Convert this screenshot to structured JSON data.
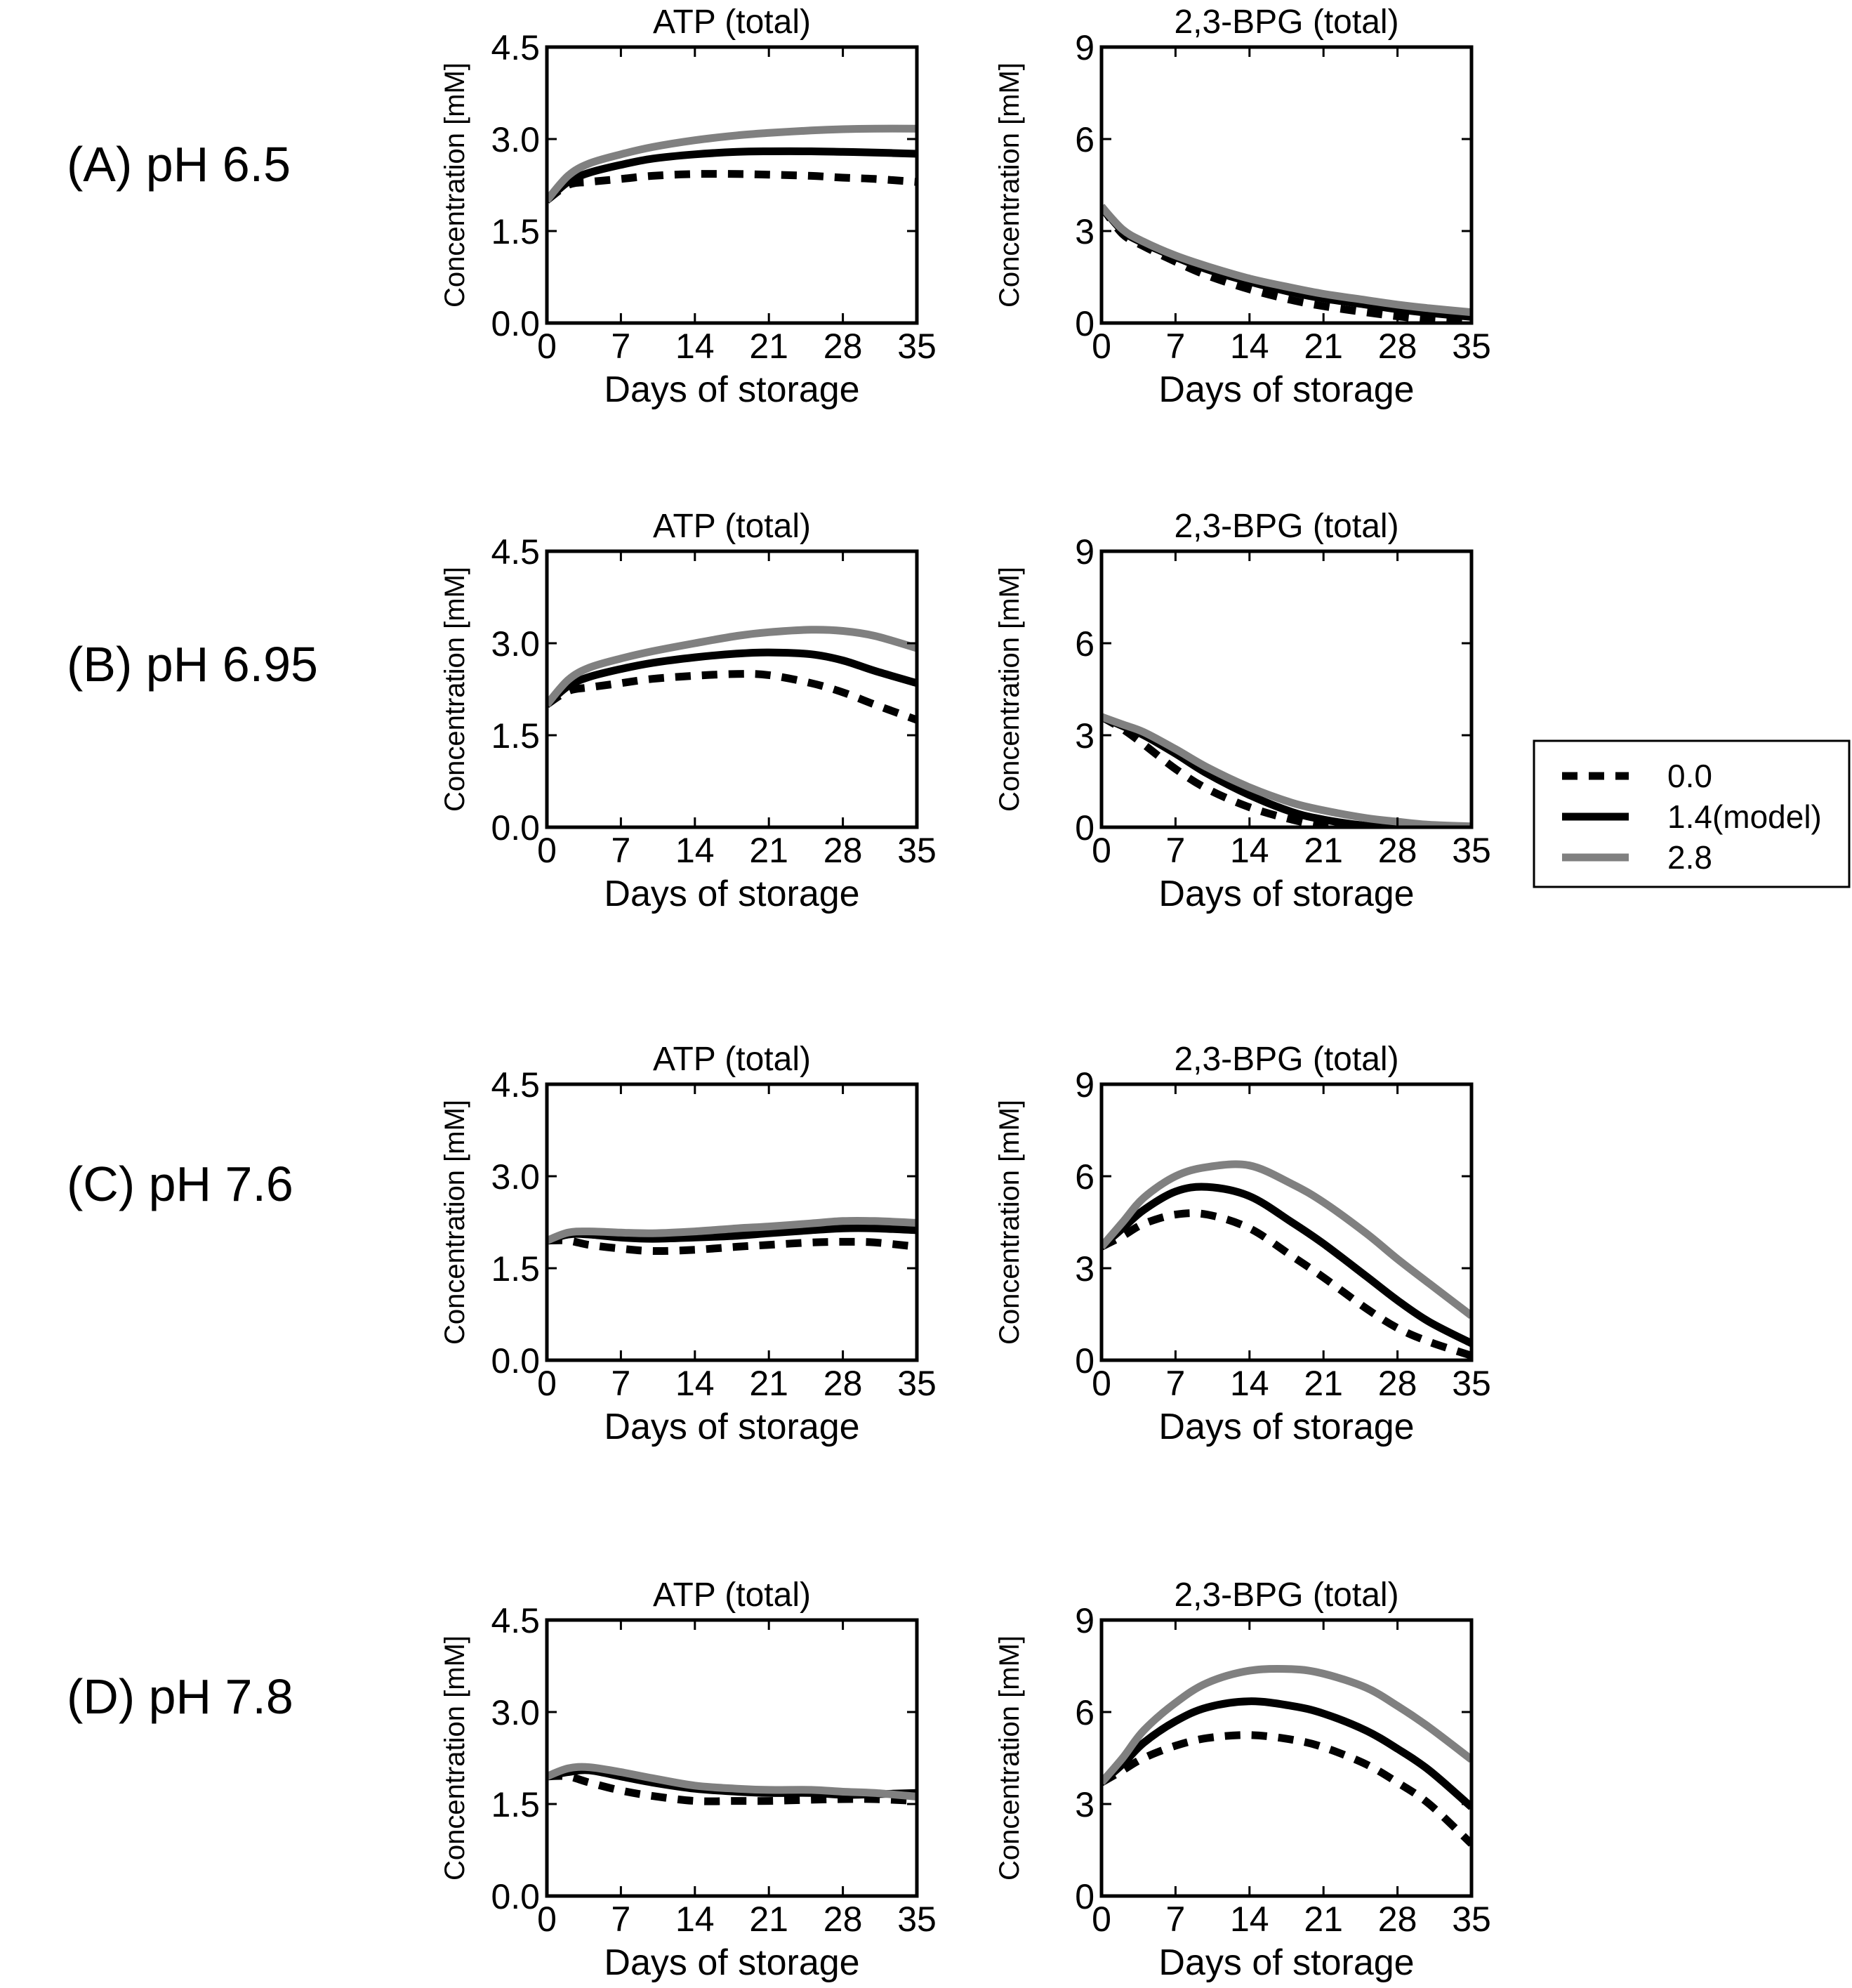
{
  "legend": {
    "placement": "right",
    "entries": [
      {
        "label": "0.0",
        "style": "dashed",
        "color": "#000000"
      },
      {
        "label": "1.4(model)",
        "style": "solid",
        "color": "#000000"
      },
      {
        "label": "2.8",
        "style": "solid",
        "color": "#808080"
      }
    ]
  },
  "rows": [
    {
      "label": "(A) pH 6.5"
    },
    {
      "label": "(B) pH 6.95"
    },
    {
      "label": "(C) pH 7.6"
    },
    {
      "label": "(D) pH 7.8"
    }
  ],
  "chart_data": [
    {
      "type": "line",
      "row": 0,
      "title": "ATP (total)",
      "xlabel": "Days of storage",
      "ylabel": "Concentration [mM]",
      "xlim": [
        0,
        35
      ],
      "ylim": [
        0,
        4.5
      ],
      "xticks": [
        "0",
        "7",
        "14",
        "21",
        "28",
        "35"
      ],
      "yticks": [
        "0.0",
        "1.5",
        "3.0",
        "4.5"
      ],
      "x": [
        0,
        2,
        4,
        7,
        10,
        14,
        18,
        21,
        25,
        28,
        31,
        35
      ],
      "series": [
        {
          "name": "0.0",
          "values": [
            2.0,
            2.25,
            2.3,
            2.35,
            2.4,
            2.43,
            2.43,
            2.42,
            2.4,
            2.37,
            2.35,
            2.3
          ]
        },
        {
          "name": "1.4(model)",
          "values": [
            2.0,
            2.3,
            2.45,
            2.58,
            2.68,
            2.75,
            2.79,
            2.8,
            2.8,
            2.79,
            2.78,
            2.76
          ]
        },
        {
          "name": "2.8",
          "values": [
            2.0,
            2.4,
            2.6,
            2.75,
            2.87,
            2.98,
            3.06,
            3.1,
            3.14,
            3.16,
            3.17,
            3.17
          ]
        }
      ]
    },
    {
      "type": "line",
      "row": 0,
      "title": "2,3-BPG (total)",
      "xlabel": "Days of storage",
      "ylabel": "Concentration [mM]",
      "xlim": [
        0,
        35
      ],
      "ylim": [
        0,
        9
      ],
      "xticks": [
        "0",
        "7",
        "14",
        "21",
        "28",
        "35"
      ],
      "yticks": [
        "0",
        "3",
        "6",
        "9"
      ],
      "x": [
        0,
        2,
        4,
        7,
        10,
        14,
        18,
        21,
        25,
        28,
        31,
        35
      ],
      "series": [
        {
          "name": "0.0",
          "values": [
            3.8,
            2.9,
            2.5,
            2.0,
            1.55,
            1.1,
            0.75,
            0.55,
            0.35,
            0.22,
            0.12,
            0.05
          ]
        },
        {
          "name": "1.4(model)",
          "values": [
            3.8,
            3.0,
            2.6,
            2.15,
            1.75,
            1.35,
            1.0,
            0.8,
            0.6,
            0.45,
            0.33,
            0.2
          ]
        },
        {
          "name": "2.8",
          "values": [
            3.8,
            3.05,
            2.65,
            2.2,
            1.85,
            1.45,
            1.15,
            0.95,
            0.75,
            0.6,
            0.48,
            0.35
          ]
        }
      ]
    },
    {
      "type": "line",
      "row": 1,
      "title": "ATP (total)",
      "xlabel": "Days of storage",
      "ylabel": "Concentration [mM]",
      "xlim": [
        0,
        35
      ],
      "ylim": [
        0,
        4.5
      ],
      "xticks": [
        "0",
        "7",
        "14",
        "21",
        "28",
        "35"
      ],
      "yticks": [
        "0.0",
        "1.5",
        "3.0",
        "4.5"
      ],
      "x": [
        0,
        2,
        4,
        7,
        10,
        14,
        18,
        21,
        25,
        28,
        31,
        35
      ],
      "series": [
        {
          "name": "0.0",
          "values": [
            2.0,
            2.22,
            2.28,
            2.35,
            2.42,
            2.47,
            2.5,
            2.48,
            2.35,
            2.2,
            2.0,
            1.75
          ]
        },
        {
          "name": "1.4(model)",
          "values": [
            2.0,
            2.3,
            2.45,
            2.58,
            2.68,
            2.77,
            2.83,
            2.85,
            2.82,
            2.72,
            2.55,
            2.35
          ]
        },
        {
          "name": "2.8",
          "values": [
            2.0,
            2.4,
            2.6,
            2.75,
            2.87,
            3.0,
            3.12,
            3.18,
            3.22,
            3.2,
            3.12,
            2.92
          ]
        }
      ]
    },
    {
      "type": "line",
      "row": 1,
      "title": "2,3-BPG (total)",
      "xlabel": "Days of storage",
      "ylabel": "Concentration [mM]",
      "xlim": [
        0,
        35
      ],
      "ylim": [
        0,
        9
      ],
      "xticks": [
        "0",
        "7",
        "14",
        "21",
        "28",
        "35"
      ],
      "yticks": [
        "0",
        "3",
        "6",
        "9"
      ],
      "x": [
        0,
        2,
        4,
        7,
        10,
        14,
        18,
        21,
        25,
        28,
        31,
        35
      ],
      "series": [
        {
          "name": "0.0",
          "values": [
            3.6,
            3.2,
            2.7,
            1.9,
            1.25,
            0.65,
            0.25,
            0.05,
            0,
            0,
            0,
            0
          ]
        },
        {
          "name": "1.4(model)",
          "values": [
            3.6,
            3.3,
            3.0,
            2.4,
            1.75,
            1.05,
            0.5,
            0.25,
            0.05,
            0,
            0,
            0
          ]
        },
        {
          "name": "2.8",
          "values": [
            3.6,
            3.35,
            3.1,
            2.55,
            1.95,
            1.3,
            0.8,
            0.55,
            0.3,
            0.18,
            0.08,
            0.03
          ]
        }
      ]
    },
    {
      "type": "line",
      "row": 2,
      "title": "ATP (total)",
      "xlabel": "Days of storage",
      "ylabel": "Concentration [mM]",
      "xlim": [
        0,
        35
      ],
      "ylim": [
        0,
        4.5
      ],
      "xticks": [
        "0",
        "7",
        "14",
        "21",
        "28",
        "35"
      ],
      "yticks": [
        "0.0",
        "1.5",
        "3.0",
        "4.5"
      ],
      "x": [
        0,
        2,
        4,
        7,
        10,
        14,
        18,
        21,
        25,
        28,
        31,
        35
      ],
      "series": [
        {
          "name": "0.0",
          "values": [
            1.95,
            1.95,
            1.88,
            1.82,
            1.78,
            1.8,
            1.85,
            1.88,
            1.92,
            1.93,
            1.92,
            1.85
          ]
        },
        {
          "name": "1.4(model)",
          "values": [
            1.95,
            2.05,
            2.05,
            2.0,
            1.98,
            2.0,
            2.03,
            2.07,
            2.12,
            2.15,
            2.15,
            2.12
          ]
        },
        {
          "name": "2.8",
          "values": [
            1.95,
            2.08,
            2.1,
            2.08,
            2.07,
            2.1,
            2.15,
            2.18,
            2.23,
            2.27,
            2.27,
            2.24
          ]
        }
      ]
    },
    {
      "type": "line",
      "row": 2,
      "title": "2,3-BPG (total)",
      "xlabel": "Days of storage",
      "ylabel": "Concentration [mM]",
      "xlim": [
        0,
        35
      ],
      "ylim": [
        0,
        9
      ],
      "xticks": [
        "0",
        "7",
        "14",
        "21",
        "28",
        "35"
      ],
      "yticks": [
        "0",
        "3",
        "6",
        "9"
      ],
      "x": [
        0,
        2,
        4,
        7,
        10,
        14,
        18,
        21,
        25,
        28,
        31,
        35
      ],
      "series": [
        {
          "name": "0.0",
          "values": [
            3.7,
            4.05,
            4.45,
            4.75,
            4.75,
            4.3,
            3.4,
            2.7,
            1.7,
            1.05,
            0.6,
            0.15
          ]
        },
        {
          "name": "1.4(model)",
          "values": [
            3.7,
            4.3,
            4.9,
            5.5,
            5.65,
            5.35,
            4.5,
            3.8,
            2.75,
            1.95,
            1.25,
            0.55
          ]
        },
        {
          "name": "2.8",
          "values": [
            3.7,
            4.5,
            5.3,
            6.0,
            6.3,
            6.35,
            5.75,
            5.15,
            4.15,
            3.3,
            2.5,
            1.45
          ]
        }
      ]
    },
    {
      "type": "line",
      "row": 3,
      "title": "ATP (total)",
      "xlabel": "Days of storage",
      "ylabel": "Concentration [mM]",
      "xlim": [
        0,
        35
      ],
      "ylim": [
        0,
        4.5
      ],
      "xticks": [
        "0",
        "7",
        "14",
        "21",
        "28",
        "35"
      ],
      "yticks": [
        "0.0",
        "1.5",
        "3.0",
        "4.5"
      ],
      "x": [
        0,
        2,
        4,
        7,
        10,
        14,
        18,
        21,
        25,
        28,
        31,
        35
      ],
      "series": [
        {
          "name": "0.0",
          "values": [
            1.95,
            1.95,
            1.85,
            1.72,
            1.63,
            1.55,
            1.55,
            1.55,
            1.57,
            1.58,
            1.58,
            1.55
          ]
        },
        {
          "name": "1.4(model)",
          "values": [
            1.95,
            2.02,
            2.05,
            1.95,
            1.85,
            1.75,
            1.7,
            1.68,
            1.68,
            1.65,
            1.66,
            1.68
          ]
        },
        {
          "name": "2.8",
          "values": [
            1.95,
            2.08,
            2.1,
            2.02,
            1.92,
            1.8,
            1.75,
            1.73,
            1.73,
            1.7,
            1.68,
            1.62
          ]
        }
      ]
    },
    {
      "type": "line",
      "row": 3,
      "title": "2,3-BPG (total)",
      "xlabel": "Days of storage",
      "ylabel": "Concentration [mM]",
      "xlim": [
        0,
        35
      ],
      "ylim": [
        0,
        9
      ],
      "xticks": [
        "0",
        "7",
        "14",
        "21",
        "28",
        "35"
      ],
      "yticks": [
        "0",
        "3",
        "6",
        "9"
      ],
      "x": [
        0,
        2,
        4,
        7,
        10,
        14,
        18,
        21,
        25,
        28,
        31,
        35
      ],
      "series": [
        {
          "name": "0.0",
          "values": [
            3.7,
            4.1,
            4.5,
            4.9,
            5.15,
            5.25,
            5.1,
            4.85,
            4.3,
            3.7,
            3.0,
            1.7
          ]
        },
        {
          "name": "1.4(model)",
          "values": [
            3.7,
            4.3,
            5.0,
            5.7,
            6.15,
            6.35,
            6.2,
            5.95,
            5.4,
            4.8,
            4.1,
            2.9
          ]
        },
        {
          "name": "2.8",
          "values": [
            3.7,
            4.5,
            5.4,
            6.3,
            6.95,
            7.35,
            7.4,
            7.25,
            6.8,
            6.2,
            5.5,
            4.45
          ]
        }
      ]
    }
  ]
}
